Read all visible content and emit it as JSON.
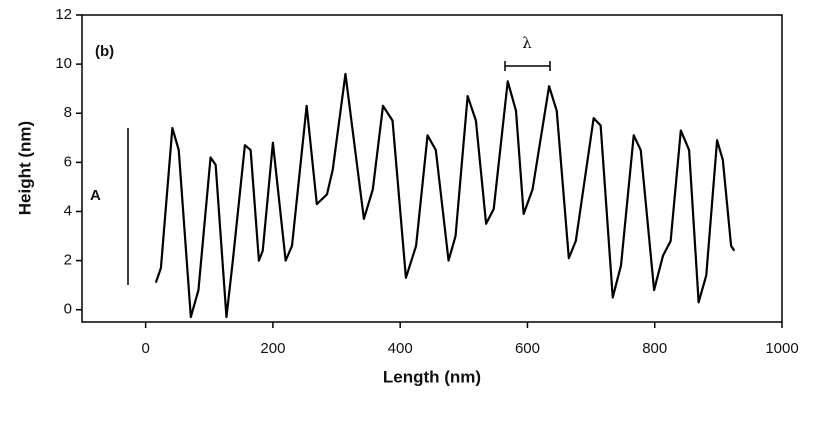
{
  "chart_data": {
    "type": "line",
    "xlabel": "Length (nm)",
    "ylabel": "Height (nm)",
    "annotations": [
      "(b)",
      "λ",
      "A"
    ],
    "xlim": [
      -100,
      1000
    ],
    "ylim": [
      -0.5,
      12
    ],
    "xticks": [
      0,
      200,
      400,
      600,
      800,
      1000
    ],
    "yticks": [
      0,
      2,
      4,
      6,
      8,
      10,
      12
    ],
    "grid": false,
    "series": [
      {
        "color": "#000000",
        "x": [
          16,
          24,
          42,
          52,
          71,
          83,
          102,
          110,
          127,
          137,
          156,
          165,
          178,
          184,
          200,
          220,
          230,
          253,
          269,
          285,
          294,
          314,
          343,
          357,
          373,
          388,
          409,
          425,
          443,
          456,
          476,
          487,
          506,
          519,
          535,
          547,
          569,
          582,
          594,
          608,
          634,
          646,
          665,
          676,
          704,
          715,
          734,
          747,
          767,
          778,
          799,
          813,
          825,
          841,
          854,
          869,
          881,
          898,
          907,
          920,
          925
        ],
        "values": [
          1.1,
          1.7,
          7.4,
          6.5,
          -0.3,
          0.8,
          6.2,
          5.9,
          -0.3,
          2.0,
          6.7,
          6.5,
          2.0,
          2.4,
          6.8,
          2.0,
          2.6,
          8.3,
          4.3,
          4.7,
          5.7,
          9.6,
          3.7,
          4.9,
          8.3,
          7.7,
          1.3,
          2.6,
          7.1,
          6.5,
          2.0,
          3.0,
          8.7,
          7.7,
          3.5,
          4.1,
          9.3,
          8.1,
          3.9,
          4.9,
          9.1,
          8.1,
          2.1,
          2.8,
          7.8,
          7.5,
          0.5,
          1.8,
          7.1,
          6.5,
          0.8,
          2.2,
          2.8,
          7.3,
          6.5,
          0.3,
          1.4,
          6.9,
          6.1,
          2.6,
          2.4
        ]
      }
    ]
  }
}
